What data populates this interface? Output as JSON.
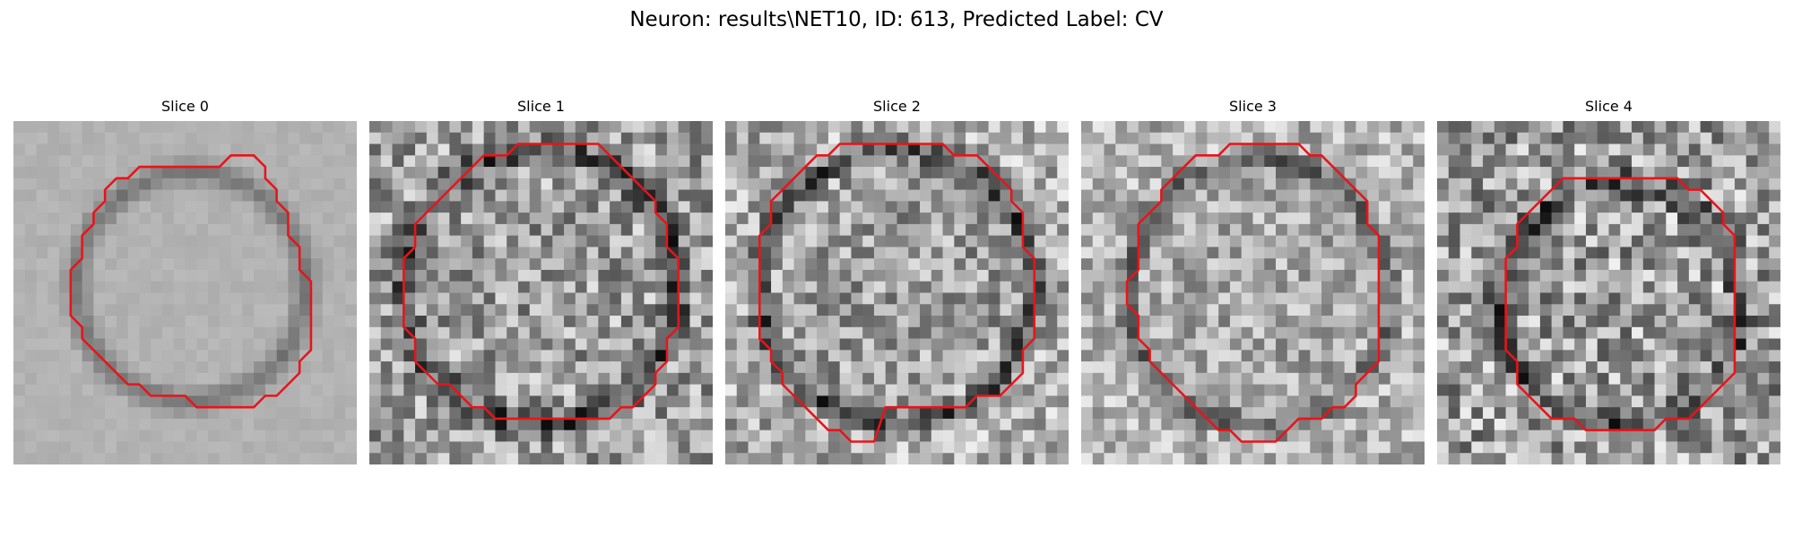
{
  "figure": {
    "title": "Neuron: results\\NET10, ID: 613, Predicted Label: CV"
  },
  "panels": [
    {
      "title": "Slice 0"
    },
    {
      "title": "Slice 1"
    },
    {
      "title": "Slice 2"
    },
    {
      "title": "Slice 3"
    },
    {
      "title": "Slice 4"
    }
  ],
  "colors": {
    "contour": "#e8141a",
    "background": "#ffffff"
  }
}
